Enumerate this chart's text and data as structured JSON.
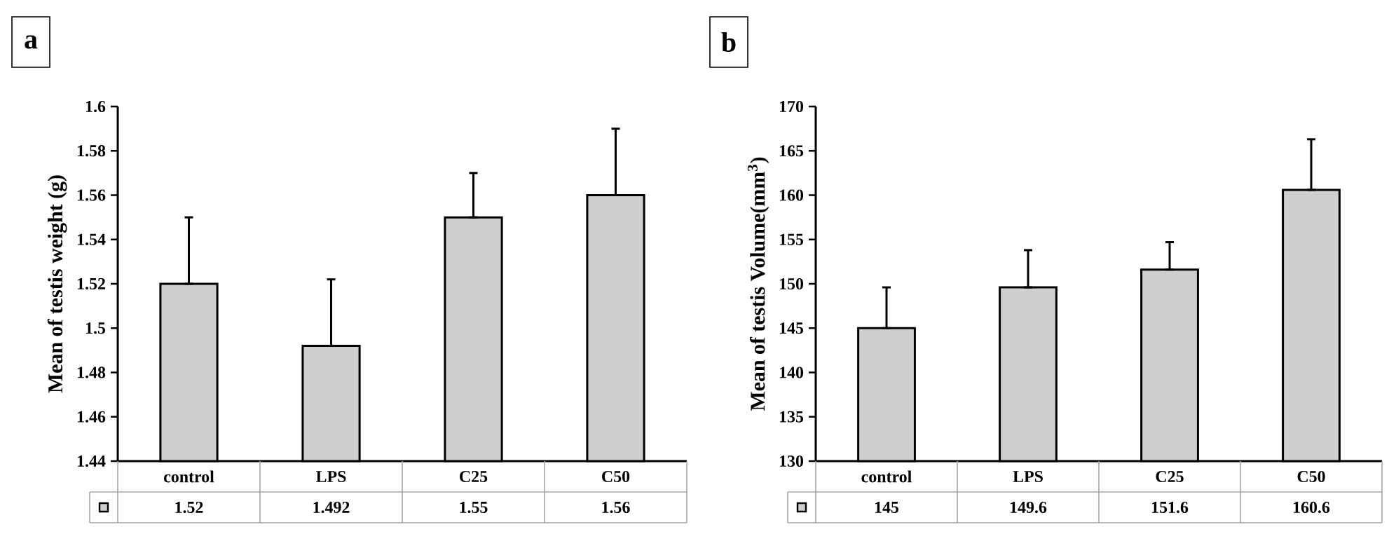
{
  "chart_data": [
    {
      "type": "bar",
      "title": "a",
      "ylabel": "Mean of testis weight (g)",
      "categories": [
        "control",
        "LPS",
        "C25",
        "C50"
      ],
      "values": [
        1.52,
        1.492,
        1.55,
        1.56
      ],
      "color": "#d0cece",
      "errors": [
        [
          1.52,
          1.55
        ],
        [
          1.492,
          1.522
        ],
        [
          1.55,
          1.57
        ],
        [
          1.56,
          1.59
        ]
      ],
      "ylim": [
        1.44,
        1.6
      ],
      "yticks": [
        1.44,
        1.46,
        1.48,
        1.5,
        1.52,
        1.54,
        1.56,
        1.58,
        1.6
      ],
      "data_labels": true
    },
    {
      "type": "bar",
      "title": "b",
      "ylabel": "Mean of testis Volume(mm$^{3}$)",
      "categories": [
        "control",
        "LPS",
        "C25",
        "C50"
      ],
      "values": [
        145,
        149.6,
        151.6,
        160.6
      ],
      "color": "#d0cece",
      "errors": [
        [
          145,
          149.6
        ],
        [
          149.6,
          153.8
        ],
        [
          151.6,
          154.7
        ],
        [
          160.6,
          166.3
        ]
      ],
      "ylim": [
        130,
        170
      ],
      "yticks": [
        130,
        135,
        140,
        145,
        150,
        155,
        160,
        165,
        170
      ],
      "data_labels": true
    }
  ]
}
